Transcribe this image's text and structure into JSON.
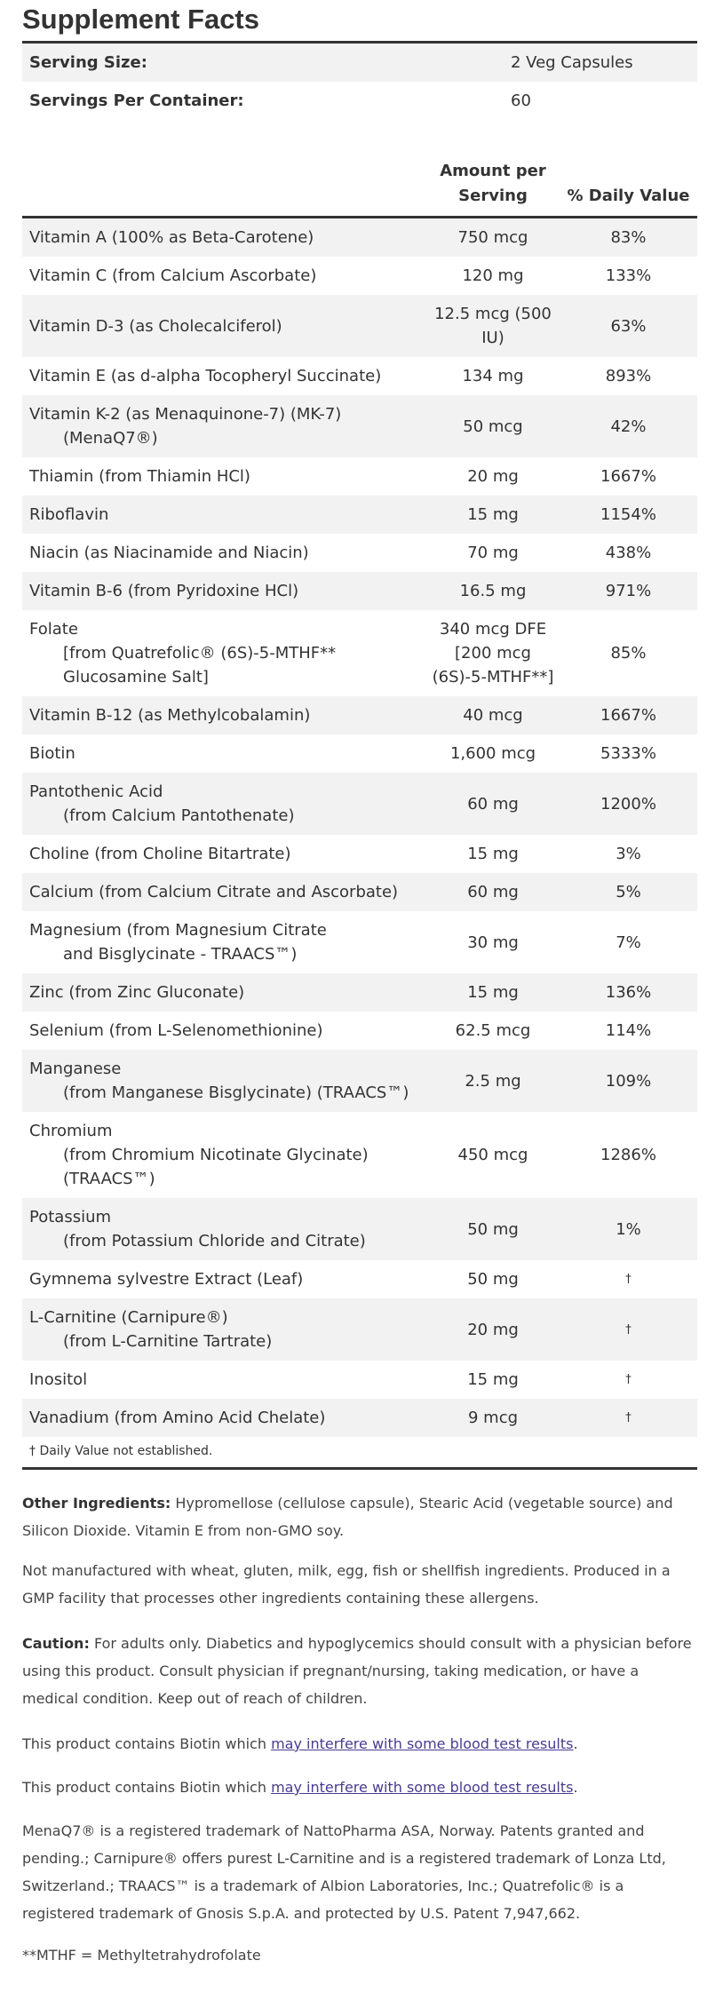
{
  "title": "Supplement Facts",
  "serving": [
    {
      "label": "Serving Size:",
      "value": "2 Veg Capsules"
    },
    {
      "label": "Servings Per Container:",
      "value": "60"
    }
  ],
  "table": {
    "headers": [
      "Amount per Serving",
      "% Daily Value"
    ],
    "rows": [
      {
        "name": "Vitamin A (100% as Beta-Carotene)",
        "amount": "750 mcg",
        "dv": "83%"
      },
      {
        "name": "Vitamin C (from Calcium Ascorbate)",
        "amount": "120 mg",
        "dv": "133%"
      },
      {
        "name": "Vitamin D-3 (as Cholecalciferol)",
        "amount": "12.5 mcg (500 IU)",
        "dv": "63%"
      },
      {
        "name": "Vitamin E (as d-alpha Tocopheryl Succinate)",
        "amount": "134 mg",
        "dv": "893%"
      },
      {
        "name": "Vitamin K-2 (as Menaquinone-7) (MK-7)",
        "sub": "(MenaQ7®)",
        "amount": "50 mcg",
        "dv": "42%"
      },
      {
        "name": "Thiamin (from Thiamin HCl)",
        "amount": "20 mg",
        "dv": "1667%"
      },
      {
        "name": "Riboflavin",
        "amount": "15 mg",
        "dv": "1154%"
      },
      {
        "name": "Niacin (as Niacinamide and Niacin)",
        "amount": "70 mg",
        "dv": "438%"
      },
      {
        "name": "Vitamin B-6 (from Pyridoxine HCl)",
        "amount": "16.5 mg",
        "dv": "971%"
      },
      {
        "name": "Folate",
        "sub": "[from Quatrefolic® (6S)-5-MTHF** Glucosamine Salt]",
        "amount": "340 mcg DFE [200 mcg (6S)-5-MTHF**]",
        "dv": "85%"
      },
      {
        "name": "Vitamin B-12 (as Methylcobalamin)",
        "amount": "40 mcg",
        "dv": "1667%"
      },
      {
        "name": "Biotin",
        "amount": "1,600 mcg",
        "dv": "5333%"
      },
      {
        "name": "Pantothenic Acid",
        "sub": "(from Calcium Pantothenate)",
        "amount": "60 mg",
        "dv": "1200%"
      },
      {
        "name": "Choline (from Choline Bitartrate)",
        "amount": "15 mg",
        "dv": "3%"
      },
      {
        "name": "Calcium (from Calcium Citrate and Ascorbate)",
        "amount": "60 mg",
        "dv": "5%"
      },
      {
        "name": "Magnesium (from Magnesium Citrate",
        "sub": "and Bisglycinate - TRAACS™)",
        "amount": "30 mg",
        "dv": "7%"
      },
      {
        "name": "Zinc (from Zinc Gluconate)",
        "amount": "15 mg",
        "dv": "136%"
      },
      {
        "name": "Selenium (from L-Selenomethionine)",
        "amount": "62.5 mcg",
        "dv": "114%"
      },
      {
        "name": "Manganese",
        "sub": "(from Manganese Bisglycinate) (TRAACS™)",
        "amount": "2.5 mg",
        "dv": "109%"
      },
      {
        "name": "Chromium",
        "sub": "(from Chromium Nicotinate Glycinate) (TRAACS™)",
        "amount": "450 mcg",
        "dv": "1286%"
      },
      {
        "name": "Potassium",
        "sub": "(from Potassium Chloride and Citrate)",
        "amount": "50 mg",
        "dv": "1%"
      },
      {
        "name": "Gymnema sylvestre Extract (Leaf)",
        "amount": "50 mg",
        "dv": "†"
      },
      {
        "name": "L-Carnitine (Carnipure®)",
        "sub": "(from L-Carnitine Tartrate)",
        "amount": "20 mg",
        "dv": "†"
      },
      {
        "name": "Inositol",
        "amount": "15 mg",
        "dv": "†"
      },
      {
        "name": "Vanadium (from Amino Acid Chelate)",
        "amount": "9 mcg",
        "dv": "†"
      }
    ],
    "footnote": "† Daily Value not established."
  },
  "notes": {
    "other_ingredients": {
      "label": "Other Ingredients:",
      "text": "Hypromellose (cellulose capsule), Stearic Acid (vegetable source) and Silicon Dioxide. Vitamin E from non-GMO soy."
    },
    "allergens": "Not manufactured with wheat, gluten, milk, egg, fish or shellfish ingredients. Produced in a GMP facility that processes other ingredients containing these allergens.",
    "caution": {
      "label": "Caution:",
      "text": "For adults only. Diabetics and hypoglycemics should consult with a physician before using this product. Consult physician if pregnant/nursing, taking medication, or have a medical condition. Keep out of reach of children."
    },
    "biotin": [
      {
        "before": "This product contains Biotin which",
        "link": "may interfere with some blood test results",
        "after": "."
      },
      {
        "before": "This product contains Biotin which",
        "link": "may interfere with some blood test results",
        "after": "."
      }
    ],
    "trademarks": "MenaQ7® is a registered trademark of NattoPharma ASA, Norway. Patents granted and pending.; Carnipure® offers purest L-Carnitine and is a registered trademark of Lonza Ltd, Switzerland.; TRAACS™ is a trademark of Albion Laboratories, Inc.; Quatrefolic® is a registered trademark of Gnosis S.p.A. and protected by U.S. Patent 7,947,662.",
    "mthf": "**MTHF = Methyltetrahydrofolate"
  }
}
